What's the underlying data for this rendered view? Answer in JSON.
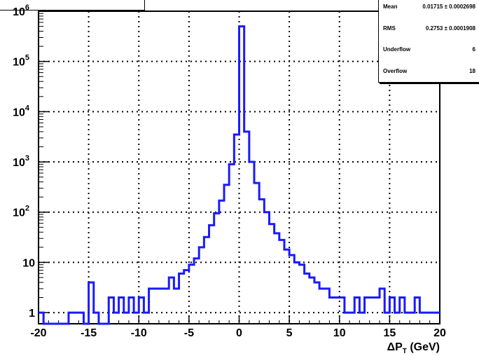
{
  "stats": {
    "rows": [
      {
        "label": "Mean",
        "value": "0.01715 ± 0.0002698"
      },
      {
        "label": "RMS",
        "value": "0.2753 ± 0.0001908"
      },
      {
        "label": "Underflow",
        "value": "6"
      },
      {
        "label": "Overflow",
        "value": "18"
      }
    ]
  },
  "chart_data": {
    "type": "histogram",
    "xlabel_prefix": "ΔP",
    "xlabel_sub": "T",
    "xlabel_suffix": " (GeV)",
    "xlim": [
      -20,
      20
    ],
    "ylim": [
      0.6,
      1000000
    ],
    "y_scale": "log",
    "grid": true,
    "color": "#1a1aff",
    "x_ticks": [
      -20,
      -15,
      -10,
      -5,
      0,
      5,
      10,
      15,
      20
    ],
    "x_tick_labels": [
      "-20",
      "-15",
      "-10",
      "-5",
      "0",
      "5",
      "10",
      "15",
      "20"
    ],
    "y_ticks": [
      {
        "value": 1,
        "base": "1",
        "exp": ""
      },
      {
        "value": 10,
        "base": "10",
        "exp": ""
      },
      {
        "value": 100,
        "base": "10",
        "exp": "2"
      },
      {
        "value": 1000,
        "base": "10",
        "exp": "3"
      },
      {
        "value": 10000,
        "base": "10",
        "exp": "4"
      },
      {
        "value": 100000,
        "base": "10",
        "exp": "5"
      },
      {
        "value": 1000000,
        "base": "10",
        "exp": "6"
      }
    ],
    "points": [
      [
        -20,
        1
      ],
      [
        -19.5,
        0
      ],
      [
        -19,
        0
      ],
      [
        -18.5,
        0
      ],
      [
        -18,
        0
      ],
      [
        -17.5,
        0
      ],
      [
        -17,
        1
      ],
      [
        -16.5,
        1
      ],
      [
        -16,
        1
      ],
      [
        -15.5,
        0
      ],
      [
        -15,
        4
      ],
      [
        -14.5,
        1
      ],
      [
        -14,
        0
      ],
      [
        -13.5,
        0
      ],
      [
        -13,
        2
      ],
      [
        -12.5,
        1
      ],
      [
        -12,
        2
      ],
      [
        -11.5,
        1
      ],
      [
        -11,
        2
      ],
      [
        -10.5,
        1
      ],
      [
        -10,
        2
      ],
      [
        -9.5,
        1
      ],
      [
        -9,
        3
      ],
      [
        -8.5,
        3
      ],
      [
        -8,
        3
      ],
      [
        -7.5,
        3
      ],
      [
        -7,
        5
      ],
      [
        -6.5,
        3
      ],
      [
        -6,
        6
      ],
      [
        -5.5,
        7
      ],
      [
        -5,
        9
      ],
      [
        -4.5,
        12
      ],
      [
        -4,
        20
      ],
      [
        -3.5,
        32
      ],
      [
        -3,
        55
      ],
      [
        -2.5,
        95
      ],
      [
        -2,
        170
      ],
      [
        -1.5,
        350
      ],
      [
        -1,
        900
      ],
      [
        -0.5,
        3500
      ],
      [
        0,
        500000
      ],
      [
        0.5,
        4000
      ],
      [
        1,
        1000
      ],
      [
        1.5,
        380
      ],
      [
        2,
        180
      ],
      [
        2.5,
        100
      ],
      [
        3,
        58
      ],
      [
        3.5,
        38
      ],
      [
        4,
        28
      ],
      [
        4.5,
        18
      ],
      [
        5,
        14
      ],
      [
        5.5,
        10
      ],
      [
        6,
        9
      ],
      [
        6.5,
        6
      ],
      [
        7,
        5
      ],
      [
        7.5,
        4
      ],
      [
        8,
        3
      ],
      [
        8.5,
        3
      ],
      [
        9,
        2
      ],
      [
        9.5,
        2
      ],
      [
        10,
        2
      ],
      [
        10.5,
        1
      ],
      [
        11,
        1
      ],
      [
        11.5,
        2
      ],
      [
        12,
        1
      ],
      [
        12.5,
        2
      ],
      [
        13,
        2
      ],
      [
        13.5,
        2
      ],
      [
        14,
        3
      ],
      [
        14.5,
        1
      ],
      [
        15,
        2
      ],
      [
        15.5,
        1
      ],
      [
        16,
        2
      ],
      [
        16.5,
        1
      ],
      [
        17,
        1
      ],
      [
        17.5,
        2
      ],
      [
        18,
        1
      ],
      [
        18.5,
        1
      ],
      [
        19,
        1
      ],
      [
        19.5,
        1
      ]
    ]
  }
}
